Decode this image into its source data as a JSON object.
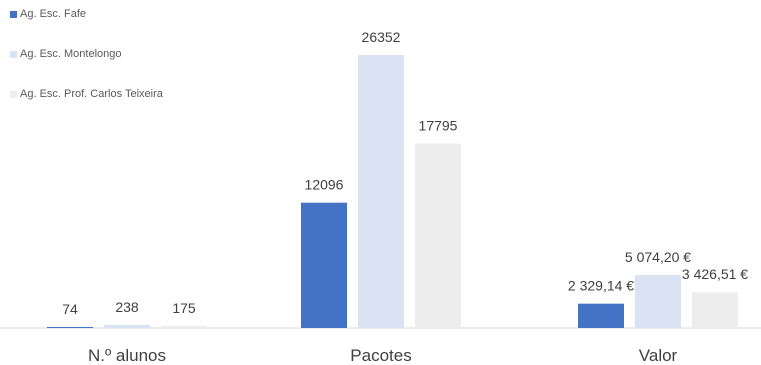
{
  "chart_data": {
    "type": "bar",
    "title": "",
    "xlabel": "",
    "ylabel": "",
    "legend_position": "top-left",
    "grid": false,
    "categories": [
      "N.º alunos",
      "Pacotes",
      "Valor"
    ],
    "series": [
      {
        "name": "Ag. Esc. Fafe",
        "color": "#4472c4",
        "values": [
          74,
          12096,
          2329.14
        ],
        "labels": [
          "74",
          "12096",
          "2 329,14 €"
        ]
      },
      {
        "name": "Ag. Esc. Montelongo",
        "color": "#dae3f3",
        "values": [
          238,
          26352,
          5074.2
        ],
        "labels": [
          "238",
          "26352",
          "5 074,20 €"
        ]
      },
      {
        "name": "Ag. Esc. Prof. Carlos Teixeira",
        "color": "#ededed",
        "values": [
          175,
          17795,
          3426.51
        ],
        "labels": [
          "175",
          "17795",
          "3 426,51 €"
        ]
      }
    ]
  }
}
